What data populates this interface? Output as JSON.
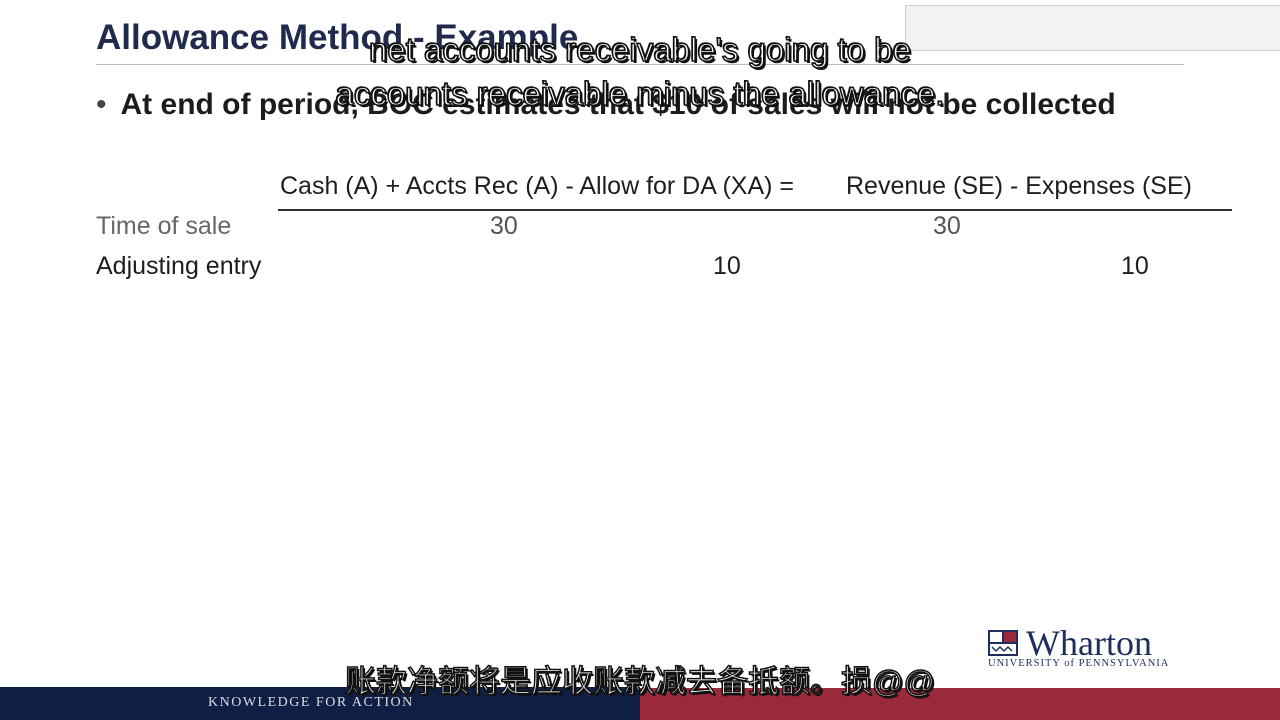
{
  "slide": {
    "title": "Allowance Method - Example",
    "bullet": "At end of period, BOC estimates that $10 of sales will not be collected",
    "equation": {
      "left": "Cash (A) + Accts Rec (A) - Allow for DA (XA) =",
      "right": "Revenue (SE) - Expenses (SE)"
    },
    "rows": [
      {
        "label": "Time of sale",
        "cash": "30",
        "allowance": "",
        "revenue": "30",
        "expenses": ""
      },
      {
        "label": "Adjusting entry",
        "cash": "",
        "allowance": "10",
        "revenue": "",
        "expenses": "10"
      }
    ]
  },
  "subtitles": {
    "english_line1": "net accounts receivable's going to be",
    "english_line2": "accounts receivable minus the allowance.",
    "chinese": "账款净额将是应收账款减去备抵额。损@@"
  },
  "branding": {
    "logo_word": "Wharton",
    "logo_sub": "UNIVERSITY of PENNSYLVANIA",
    "footer_tagline": "KNOWLEDGE FOR ACTION",
    "colors": {
      "navy": "#0f1f44",
      "crimson": "#9a2a3a",
      "title": "#1f2a4d"
    }
  }
}
